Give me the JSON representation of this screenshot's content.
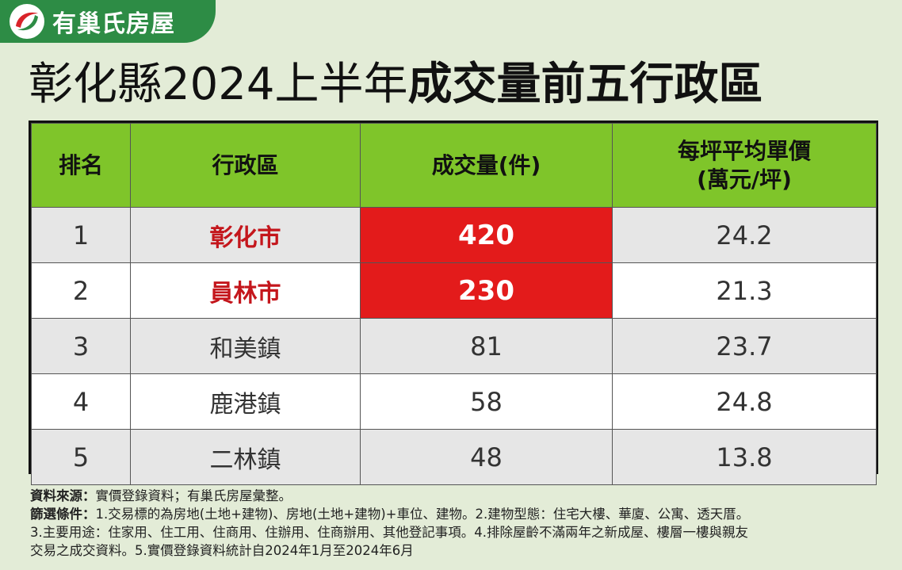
{
  "brand": {
    "name": "有巢氏房屋",
    "logo": "brand-swirl-logo",
    "colors": {
      "badge": "#2d8c45",
      "logo_red": "#d9232a"
    }
  },
  "title": {
    "light": "彰化縣2024上半年",
    "bold": "成交量前五行政區"
  },
  "chart_data": {
    "type": "table",
    "columns": [
      "排名",
      "行政區",
      "成交量(件)",
      "每坪平均單價\n(萬元/坪)"
    ],
    "column_lines": [
      [
        "排名"
      ],
      [
        "行政區"
      ],
      [
        "成交量(件)"
      ],
      [
        "每坪平均單價",
        "(萬元/坪)"
      ]
    ],
    "rows": [
      {
        "rank": "1",
        "district": "彰化市",
        "count": "420",
        "price": "24.2",
        "highlight": true
      },
      {
        "rank": "2",
        "district": "員林市",
        "count": "230",
        "price": "21.3",
        "highlight": true
      },
      {
        "rank": "3",
        "district": "和美鎮",
        "count": "81",
        "price": "23.7",
        "highlight": false
      },
      {
        "rank": "4",
        "district": "鹿港鎮",
        "count": "58",
        "price": "24.8",
        "highlight": false
      },
      {
        "rank": "5",
        "district": "二林鎮",
        "count": "48",
        "price": "13.8",
        "highlight": false
      }
    ],
    "colors": {
      "header": "#7fc52a",
      "highlight_fill": "#e31b1b",
      "highlight_text": "#c4161c",
      "row_alt": "#e6e6e6"
    }
  },
  "notes": {
    "source_label": "資料來源：",
    "source_text": "實價登錄資料；有巢氏房屋彙整。",
    "filter_label": "篩選條件：",
    "filter_line1": "1.交易標的為房地(土地+建物)、房地(土地+建物)+車位、建物。2.建物型態：住宅大樓、華廈、公寓、透天厝。",
    "filter_line2": "3.主要用途：住家用、住工用、住商用、住辦用、住商辦用、其他登記事項。4.排除屋齡不滿兩年之新成屋、樓層一樓與親友",
    "filter_line3": "交易之成交資料。5.實價登錄資料統計自2024年1月至2024年6月"
  }
}
